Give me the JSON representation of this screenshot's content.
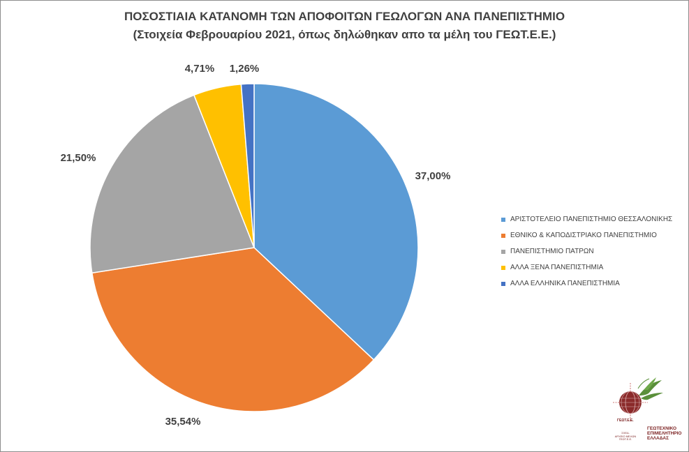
{
  "chart_data": {
    "type": "pie",
    "title": "ΠΟΣΟΣΤΙΑΙΑ ΚΑΤΑΝΟΜΗ ΤΩΝ ΑΠΟΦΟΙΤΩΝ ΓΕΩΛΟΓΩΝ ΑΝΑ ΠΑΝΕΠΙΣΤΗΜΙΟ",
    "subtitle": "(Στοιχεία Φεβρουαρίου 2021, όπως δηλώθηκαν απο τα μέλη του ΓΕΩΤ.Ε.Ε.)",
    "legend_position": "right",
    "slices": [
      {
        "label": "ΑΡΙΣΤΟΤΕΛΕΙΟ ΠΑΝΕΠΙΣΤΗΜΙΟ ΘΕΣΣΑΛΟΝΙΚΗΣ",
        "value": 37.0,
        "display": "37,00%",
        "color": "#5b9bd5"
      },
      {
        "label": "ΕΘΝΙΚΟ & ΚΑΠΟΔΙΣΤΡΙΑΚΟ ΠΑΝΕΠΙΣΤΗΜΙΟ",
        "value": 35.54,
        "display": "35,54%",
        "color": "#ed7d31"
      },
      {
        "label": "ΠΑΝΕΠΙΣΤΗΜΙΟ ΠΑΤΡΩΝ",
        "value": 21.5,
        "display": "21,50%",
        "color": "#a5a5a5"
      },
      {
        "label": "ΑΛΛΑ ΞΕΝΑ ΠΑΝΕΠΙΣΤΗΜΙΑ",
        "value": 4.71,
        "display": "4,71%",
        "color": "#ffc000"
      },
      {
        "label": "ΑΛΛΑ ΕΛΛΗΝΙΚΑ ΠΑΝΕΠΙΣΤΗΜΙΑ",
        "value": 1.26,
        "display": "1,26%",
        "color": "#4472c4"
      }
    ]
  },
  "logo": {
    "org_name": "ΓΕΩΤΕΧΝΙΚΟ\nΕΠΙΜΕΛΗΤΗΡΙΟ\nΕΛΛΑΔΑΣ",
    "abbr": "ΓΕΩΤ.Ε.Ε.",
    "bust_caption": "ΣΧΕΔ.\nΑΡΧΕΙΟ ΜΕΛΩΝ\nΓΕΩΤ.Ε.Ε.",
    "colors": {
      "globe": "#7a1f1f",
      "leaves": "#5a8f3a",
      "axis": "#c0504d"
    }
  }
}
